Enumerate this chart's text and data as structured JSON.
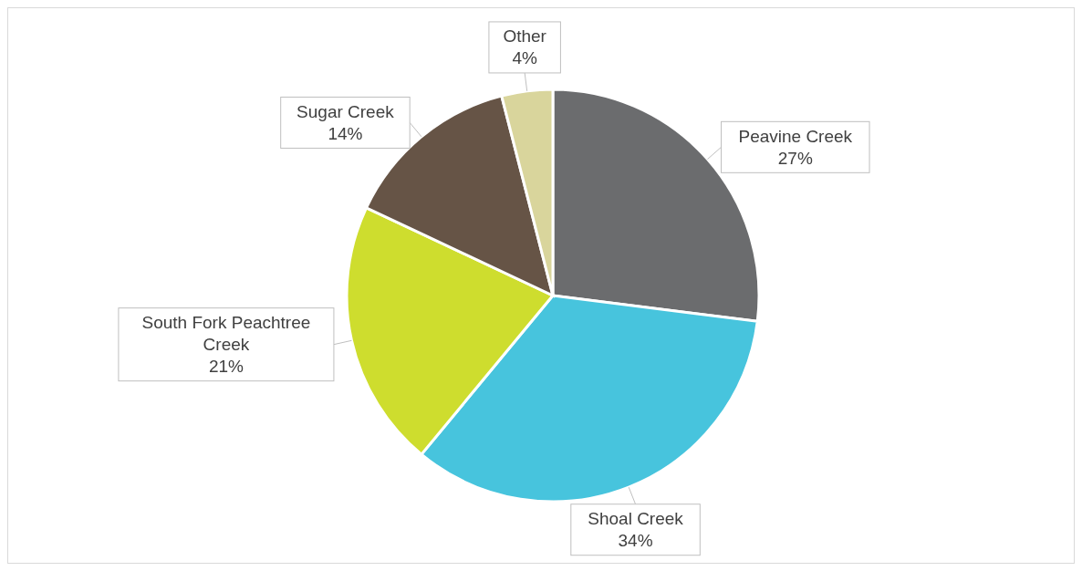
{
  "chart_data": {
    "type": "pie",
    "categories": [
      "Peavine Creek",
      "Shoal Creek",
      "South Fork Peachtree Creek",
      "Sugar Creek",
      "Other"
    ],
    "values": [
      27,
      34,
      21,
      14,
      4
    ],
    "value_labels": [
      "27%",
      "34%",
      "21%",
      "14%",
      "4%"
    ],
    "colors": [
      "#6b6c6e",
      "#47c4dd",
      "#cedd2e",
      "#665446",
      "#d9d59c"
    ]
  }
}
